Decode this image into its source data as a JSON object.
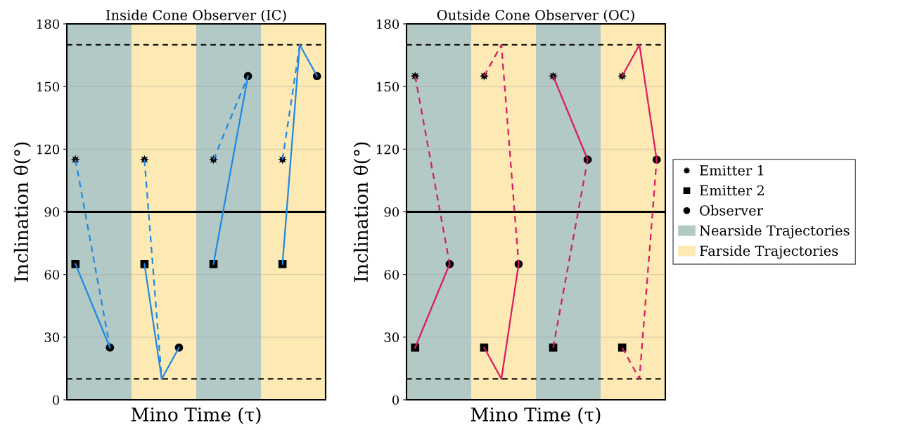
{
  "chart_data": [
    {
      "type": "line",
      "title": "Inside Cone Observer (IC)",
      "xlabel": "Mino Time (τ)",
      "ylabel": "Inclination θ(°)",
      "categories": [
        null,
        null,
        null,
        null,
        null,
        null,
        null,
        null,
        null,
        null,
        null,
        null,
        null,
        null,
        null
      ],
      "ylim": [
        0,
        180
      ],
      "yticks": [
        0,
        30,
        60,
        90,
        120,
        150,
        180
      ],
      "grid": "y",
      "ref_lines": [
        {
          "axis": "y",
          "value": 10,
          "color": "#000000",
          "line_style": "dashed"
        },
        {
          "axis": "y",
          "value": 170,
          "color": "#000000",
          "line_style": "dashed"
        },
        {
          "axis": "y",
          "value": 90,
          "color": "#000000",
          "line_style": "solid"
        }
      ],
      "series": [
        {
          "color": "#1e88e5",
          "line_style": "solid",
          "values": [
            65,
            45,
            25,
            null,
            null,
            null,
            null,
            null,
            null,
            null,
            null,
            null,
            null,
            null,
            null
          ]
        },
        {
          "color": "#1e88e5",
          "line_style": "dashed",
          "values": [
            115,
            70,
            25,
            null,
            null,
            null,
            null,
            null,
            null,
            null,
            null,
            null,
            null,
            null,
            null
          ]
        },
        {
          "color": "#1e88e5",
          "line_style": "solid",
          "values": [
            null,
            null,
            null,
            null,
            65,
            10,
            25,
            null,
            null,
            null,
            null,
            null,
            null,
            null,
            null
          ]
        },
        {
          "color": "#1e88e5",
          "line_style": "dashed",
          "values": [
            null,
            null,
            null,
            null,
            115,
            10,
            null,
            null,
            null,
            null,
            null,
            null,
            null,
            null,
            null
          ]
        },
        {
          "color": "#1e88e5",
          "line_style": "solid",
          "values": [
            null,
            null,
            null,
            null,
            null,
            null,
            null,
            null,
            65,
            110,
            155,
            null,
            null,
            null,
            null
          ]
        },
        {
          "color": "#1e88e5",
          "line_style": "dashed",
          "values": [
            null,
            null,
            null,
            null,
            null,
            null,
            null,
            null,
            115,
            135,
            155,
            null,
            null,
            null,
            null
          ]
        },
        {
          "color": "#1e88e5",
          "line_style": "solid",
          "values": [
            null,
            null,
            null,
            null,
            null,
            null,
            null,
            null,
            null,
            null,
            null,
            null,
            65,
            170,
            155
          ]
        },
        {
          "color": "#1e88e5",
          "line_style": "dashed",
          "values": [
            null,
            null,
            null,
            null,
            null,
            null,
            null,
            null,
            null,
            null,
            null,
            null,
            115,
            170,
            null
          ]
        },
        {
          "type": "scatter",
          "marker": "star",
          "color": "#000000",
          "values": [
            115,
            null,
            null,
            null,
            115,
            null,
            null,
            null,
            115,
            null,
            null,
            null,
            115,
            null,
            null
          ]
        },
        {
          "type": "scatter",
          "marker": "square",
          "color": "#000000",
          "values": [
            65,
            null,
            null,
            null,
            65,
            null,
            null,
            null,
            65,
            null,
            null,
            null,
            65,
            null,
            null
          ]
        },
        {
          "type": "scatter",
          "marker": "circle",
          "color": "#000000",
          "values": [
            null,
            null,
            25,
            null,
            null,
            null,
            25,
            null,
            null,
            null,
            155,
            null,
            null,
            null,
            155
          ]
        }
      ]
    },
    {
      "type": "line",
      "title": "Outside Cone Observer (OC)",
      "xlabel": "Mino Time (τ)",
      "ylabel": "Inclination θ(°)",
      "categories": [
        null,
        null,
        null,
        null,
        null,
        null,
        null,
        null,
        null,
        null,
        null,
        null,
        null,
        null,
        null
      ],
      "ylim": [
        0,
        180
      ],
      "yticks": [
        0,
        30,
        60,
        90,
        120,
        150,
        180
      ],
      "grid": "y",
      "legend": "right",
      "annotations": [
        "Nearside Trajectories",
        "Farside Trajectories"
      ],
      "ref_lines": [
        {
          "axis": "y",
          "value": 10,
          "color": "#000000",
          "line_style": "dashed"
        },
        {
          "axis": "y",
          "value": 170,
          "color": "#000000",
          "line_style": "dashed"
        },
        {
          "axis": "y",
          "value": 90,
          "color": "#000000",
          "line_style": "solid"
        }
      ],
      "series": [
        {
          "color": "#d81b60",
          "line_style": "solid",
          "values": [
            25,
            45,
            65,
            null,
            null,
            null,
            null,
            null,
            null,
            null,
            null,
            null,
            null,
            null,
            null
          ]
        },
        {
          "color": "#d81b60",
          "line_style": "dashed",
          "values": [
            155,
            110,
            65,
            null,
            null,
            null,
            null,
            null,
            null,
            null,
            null,
            null,
            null,
            null,
            null
          ]
        },
        {
          "color": "#d81b60",
          "line_style": "solid",
          "values": [
            null,
            null,
            null,
            null,
            25,
            10,
            65,
            null,
            null,
            null,
            null,
            null,
            null,
            null,
            null
          ]
        },
        {
          "color": "#d81b60",
          "line_style": "dashed",
          "values": [
            null,
            null,
            null,
            null,
            155,
            170,
            65,
            null,
            null,
            null,
            null,
            null,
            null,
            null,
            null
          ]
        },
        {
          "color": "#d81b60",
          "line_style": "solid",
          "values": [
            null,
            null,
            null,
            null,
            null,
            null,
            null,
            null,
            155,
            135,
            115,
            null,
            null,
            null,
            null
          ]
        },
        {
          "color": "#d81b60",
          "line_style": "dashed",
          "values": [
            null,
            null,
            null,
            null,
            null,
            null,
            null,
            null,
            25,
            70,
            115,
            null,
            null,
            null,
            null
          ]
        },
        {
          "color": "#d81b60",
          "line_style": "solid",
          "values": [
            null,
            null,
            null,
            null,
            null,
            null,
            null,
            null,
            null,
            null,
            null,
            null,
            155,
            170,
            115
          ]
        },
        {
          "color": "#d81b60",
          "line_style": "dashed",
          "values": [
            null,
            null,
            null,
            null,
            null,
            null,
            null,
            null,
            null,
            null,
            null,
            null,
            25,
            10,
            115
          ]
        },
        {
          "type": "scatter",
          "name": "Emitter 1",
          "marker": "star",
          "color": "#000000",
          "values": [
            155,
            null,
            null,
            null,
            155,
            null,
            null,
            null,
            155,
            null,
            null,
            null,
            155,
            null,
            null
          ]
        },
        {
          "type": "scatter",
          "name": "Emitter 2",
          "marker": "square",
          "color": "#000000",
          "values": [
            25,
            null,
            null,
            null,
            25,
            null,
            null,
            null,
            25,
            null,
            null,
            null,
            25,
            null,
            null
          ]
        },
        {
          "type": "scatter",
          "name": "Observer",
          "marker": "circle",
          "color": "#000000",
          "values": [
            null,
            null,
            65,
            null,
            null,
            null,
            65,
            null,
            null,
            null,
            115,
            null,
            null,
            null,
            115
          ]
        }
      ]
    }
  ]
}
